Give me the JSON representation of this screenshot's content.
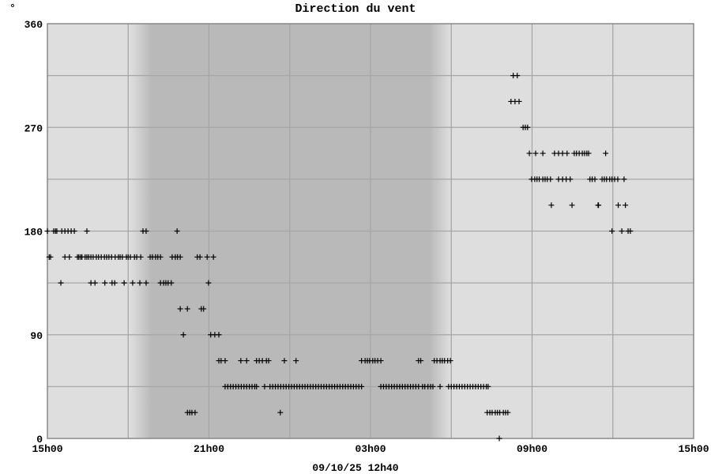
{
  "chart_data": {
    "type": "scatter",
    "title": "Direction du vent",
    "unit": "°",
    "footer": "09/10/25 12h40",
    "ylim": [
      0,
      360
    ],
    "yticks": [
      "0",
      "90",
      "180",
      "270",
      "360"
    ],
    "xticks": [
      "15h00",
      "21h00",
      "03h00",
      "09h00",
      "15h00"
    ],
    "xrange": [
      "15:00",
      "15:00 (+1 day)"
    ],
    "grid": true,
    "marker": "+",
    "colors": {
      "day_bg": "#dedede",
      "night_bg": "#b9b9b9",
      "grid": "#a6a6a6",
      "marker": "#000000"
    },
    "series": [
      {
        "deg": 0,
        "times": [
          "07:47"
        ]
      },
      {
        "deg": 22.5,
        "times": [
          "20:12",
          "20:17",
          "20:22",
          "20:29",
          "23:39",
          "07:20",
          "07:26",
          "07:31",
          "07:38",
          "07:43",
          "07:48",
          "07:56",
          "08:01",
          "08:06"
        ]
      },
      {
        "deg": 45,
        "times": [
          "21:36",
          "21:42",
          "21:48",
          "21:54",
          "22:00",
          "22:06",
          "22:12",
          "22:18",
          "22:24",
          "22:30",
          "22:36",
          "22:42",
          "22:46",
          "23:04",
          "23:16",
          "23:22",
          "23:28",
          "23:34",
          "23:40",
          "23:46",
          "23:52",
          "23:58",
          "00:04",
          "00:10",
          "00:16",
          "00:22",
          "00:28",
          "00:34",
          "00:40",
          "00:46",
          "00:52",
          "00:58",
          "01:04",
          "01:10",
          "01:16",
          "01:22",
          "01:28",
          "01:34",
          "01:40",
          "01:46",
          "01:52",
          "01:58",
          "02:04",
          "02:10",
          "02:16",
          "02:22",
          "02:28",
          "02:34",
          "02:40",
          "03:23",
          "03:29",
          "03:35",
          "03:41",
          "03:47",
          "03:53",
          "03:59",
          "04:05",
          "04:11",
          "04:17",
          "04:23",
          "04:29",
          "04:35",
          "04:41",
          "04:47",
          "04:56",
          "05:01",
          "05:08",
          "05:14",
          "05:19",
          "05:35",
          "05:54",
          "06:00",
          "06:06",
          "06:12",
          "06:18",
          "06:24",
          "06:30",
          "06:36",
          "06:42",
          "06:48",
          "06:54",
          "07:00",
          "07:06",
          "07:12",
          "07:18",
          "07:22"
        ]
      },
      {
        "deg": 67.5,
        "times": [
          "21:22",
          "21:27",
          "21:36",
          "22:11",
          "22:24",
          "22:46",
          "22:52",
          "22:59",
          "23:08",
          "23:13",
          "23:48",
          "00:14",
          "02:40",
          "02:48",
          "02:53",
          "02:58",
          "03:05",
          "03:10",
          "03:16",
          "03:23",
          "04:47",
          "04:52",
          "05:22",
          "05:28",
          "05:35",
          "05:40",
          "05:45",
          "05:52",
          "05:58"
        ]
      },
      {
        "deg": 90,
        "times": [
          "20:03",
          "21:04",
          "21:13",
          "21:22"
        ]
      },
      {
        "deg": 112.5,
        "times": [
          "19:56",
          "20:12",
          "20:43",
          "20:48"
        ]
      },
      {
        "deg": 135,
        "times": [
          "15:30",
          "16:37",
          "16:46",
          "17:08",
          "17:24",
          "17:30",
          "17:51",
          "18:10",
          "18:26",
          "18:40",
          "19:12",
          "19:19",
          "19:24",
          "19:29",
          "19:36",
          "20:59"
        ]
      },
      {
        "deg": 157.5,
        "times": [
          "15:04",
          "15:07",
          "15:39",
          "15:49",
          "16:07",
          "16:10",
          "16:14",
          "16:17",
          "16:24",
          "16:28",
          "16:32",
          "16:37",
          "16:42",
          "16:49",
          "16:54",
          "17:00",
          "17:07",
          "17:12",
          "17:17",
          "17:23",
          "17:31",
          "17:38",
          "17:42",
          "17:47",
          "17:56",
          "18:00",
          "18:05",
          "18:14",
          "18:19",
          "18:28",
          "18:49",
          "18:54",
          "19:01",
          "19:06",
          "19:12",
          "19:38",
          "19:45",
          "19:50",
          "19:56",
          "20:34",
          "20:40",
          "20:56",
          "21:10"
        ]
      },
      {
        "deg": 180,
        "times": [
          "15:00",
          "15:14",
          "15:18",
          "15:21",
          "15:32",
          "15:39",
          "15:46",
          "15:53",
          "16:00",
          "16:28",
          "18:33",
          "18:40",
          "19:49",
          "11:58",
          "12:20",
          "12:34",
          "12:39"
        ]
      },
      {
        "deg": 202.5,
        "times": [
          "09:43",
          "10:29",
          "11:27",
          "11:28",
          "12:12",
          "12:28"
        ]
      },
      {
        "deg": 225,
        "times": [
          "08:59",
          "09:06",
          "09:11",
          "09:16",
          "09:24",
          "09:29",
          "09:34",
          "09:41",
          "09:59",
          "10:08",
          "10:16",
          "10:25",
          "11:09",
          "11:14",
          "11:20",
          "11:36",
          "11:41",
          "11:46",
          "11:53",
          "11:58",
          "12:04",
          "12:11",
          "12:25"
        ]
      },
      {
        "deg": 247.5,
        "times": [
          "08:54",
          "09:08",
          "09:24",
          "09:50",
          "09:59",
          "10:08",
          "10:18",
          "10:34",
          "10:39",
          "10:45",
          "10:52",
          "10:57",
          "11:02",
          "11:06",
          "11:44"
        ]
      },
      {
        "deg": 270,
        "times": [
          "08:40",
          "08:45",
          "08:50"
        ]
      },
      {
        "deg": 292.5,
        "times": [
          "08:13",
          "08:22",
          "08:31"
        ]
      },
      {
        "deg": 315,
        "times": [
          "08:18",
          "08:27"
        ]
      }
    ]
  }
}
